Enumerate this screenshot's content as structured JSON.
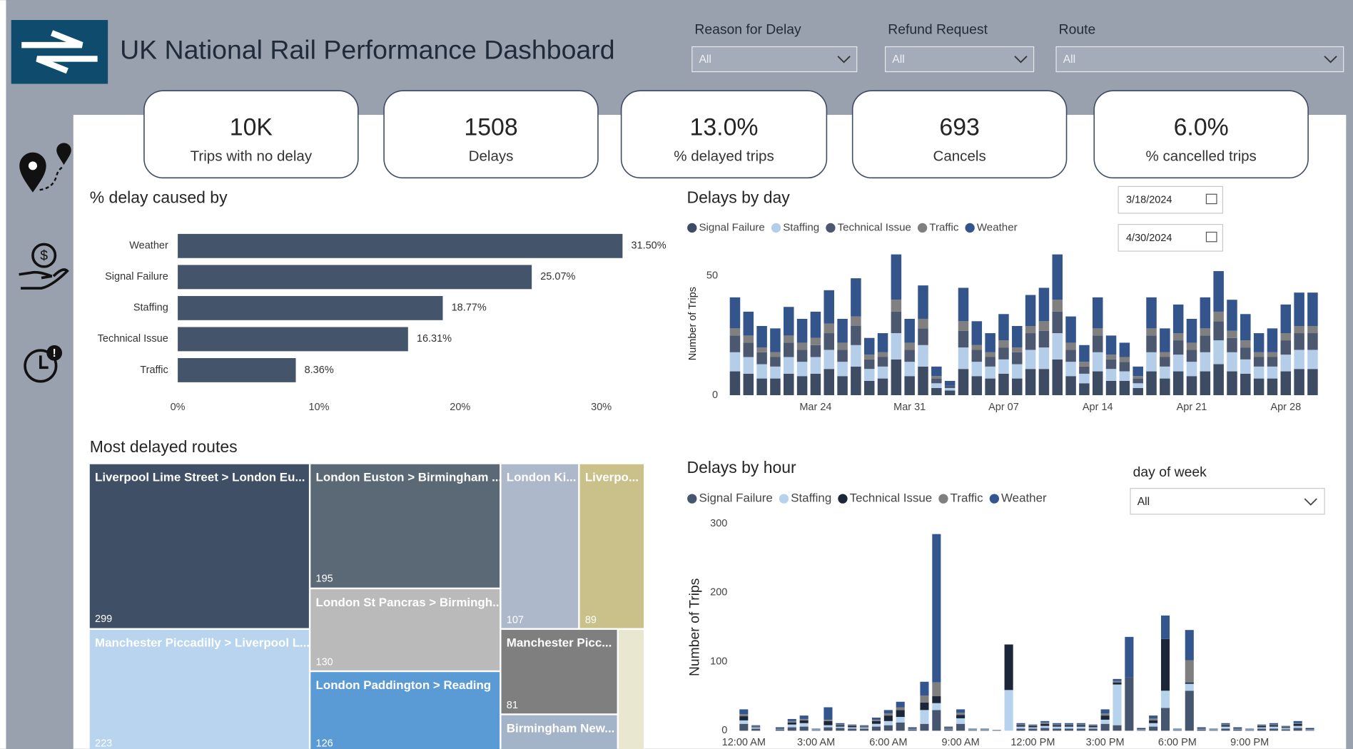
{
  "header": {
    "title": "UK National Rail Performance Dashboard"
  },
  "filters": [
    {
      "label": "Reason for Delay",
      "value": "All"
    },
    {
      "label": "Refund Request",
      "value": "All"
    },
    {
      "label": "Route",
      "value": "All"
    }
  ],
  "kpis": [
    {
      "value": "10K",
      "label": "Trips with no delay"
    },
    {
      "value": 1508,
      "label": "Delays"
    },
    {
      "value": "13.0%",
      "label": "% delayed trips"
    },
    {
      "value": 693,
      "label": "Cancels"
    },
    {
      "value": "6.0%",
      "label": "% cancelled trips"
    }
  ],
  "date_range": {
    "start": "3/18/2024",
    "end": "4/30/2024"
  },
  "day_filter": {
    "label": "day of week",
    "value": "All"
  },
  "chart_data": [
    {
      "type": "hbar",
      "title": "% delay caused by",
      "categories": [
        "Weather",
        "Signal Failure",
        "Staffing",
        "Technical Issue",
        "Traffic"
      ],
      "values": [
        31.5,
        25.07,
        18.77,
        16.31,
        8.36
      ],
      "value_labels": [
        "31.50%",
        "25.07%",
        "18.77%",
        "16.31%",
        "8.36%"
      ],
      "color": "#44546a",
      "xlim": [
        0,
        33
      ],
      "xticks": [
        {
          "value": 0,
          "label": "0%"
        },
        {
          "value": 10,
          "label": "10%"
        },
        {
          "value": 20,
          "label": "20%"
        },
        {
          "value": 30,
          "label": "30%"
        }
      ]
    },
    {
      "type": "stacked_bar",
      "title": "Delays by day",
      "y_label": "Number of Trips",
      "categories": [
        null,
        null,
        null,
        null,
        null,
        null,
        "Mar 24",
        null,
        null,
        null,
        null,
        null,
        null,
        "Mar 31",
        null,
        null,
        null,
        null,
        null,
        null,
        "Apr 07",
        null,
        null,
        null,
        null,
        null,
        null,
        "Apr 14",
        null,
        null,
        null,
        null,
        null,
        null,
        "Apr 21",
        null,
        null,
        null,
        null,
        null,
        null,
        "Apr 28",
        null,
        null
      ],
      "ylim": [
        0,
        60
      ],
      "yticks": [
        0,
        50
      ],
      "series": [
        {
          "name": "Signal Failure",
          "color": "#3e4c63",
          "values": [
            10,
            9,
            7,
            7,
            9,
            8,
            9,
            11,
            8,
            12,
            6,
            7,
            15,
            8,
            12,
            3,
            2,
            11,
            8,
            7,
            9,
            7,
            11,
            11,
            15,
            8,
            5,
            10,
            6,
            6,
            3,
            10,
            7,
            10,
            8,
            10,
            13,
            10,
            9,
            7,
            7,
            10,
            11,
            11
          ]
        },
        {
          "name": "Staffing",
          "color": "#b4cde8",
          "values": [
            8,
            7,
            6,
            5,
            7,
            6,
            7,
            8,
            6,
            9,
            5,
            5,
            11,
            6,
            9,
            2,
            1,
            9,
            6,
            5,
            6,
            6,
            8,
            9,
            11,
            6,
            4,
            8,
            5,
            4,
            2,
            8,
            5,
            7,
            6,
            8,
            10,
            8,
            6,
            5,
            5,
            7,
            8,
            8
          ]
        },
        {
          "name": "Technical Issue",
          "color": "#4b5870",
          "values": [
            7,
            6,
            5,
            4,
            6,
            5,
            5,
            7,
            5,
            8,
            4,
            4,
            9,
            5,
            7,
            2,
            1,
            7,
            5,
            4,
            5,
            5,
            7,
            7,
            9,
            5,
            3,
            7,
            4,
            4,
            2,
            7,
            4,
            6,
            5,
            7,
            8,
            6,
            5,
            4,
            4,
            6,
            7,
            7
          ]
        },
        {
          "name": "Traffic",
          "color": "#808080",
          "values": [
            3,
            3,
            2,
            2,
            3,
            3,
            3,
            4,
            3,
            4,
            2,
            2,
            5,
            3,
            4,
            1,
            0,
            4,
            2,
            2,
            3,
            2,
            3,
            4,
            5,
            3,
            2,
            3,
            2,
            2,
            1,
            3,
            2,
            3,
            3,
            3,
            4,
            3,
            3,
            2,
            2,
            3,
            3,
            3
          ]
        },
        {
          "name": "Weather",
          "color": "#33558c",
          "values": [
            13,
            10,
            9,
            10,
            12,
            10,
            11,
            14,
            10,
            16,
            7,
            8,
            19,
            10,
            14,
            4,
            2,
            14,
            10,
            8,
            11,
            9,
            13,
            14,
            19,
            11,
            7,
            13,
            8,
            6,
            4,
            13,
            10,
            12,
            10,
            13,
            17,
            13,
            11,
            8,
            10,
            12,
            14,
            14
          ]
        }
      ]
    },
    {
      "type": "stacked_bar",
      "title": "Delays by hour",
      "y_label": "Number of Trips",
      "categories": [
        "12:00 AM",
        null,
        null,
        null,
        null,
        null,
        "3:00 AM",
        null,
        null,
        null,
        null,
        null,
        "6:00 AM",
        null,
        null,
        null,
        null,
        null,
        "9:00 AM",
        null,
        null,
        null,
        null,
        null,
        "12:00 PM",
        null,
        null,
        null,
        null,
        null,
        "3:00 PM",
        null,
        null,
        null,
        null,
        null,
        "6:00 PM",
        null,
        null,
        null,
        null,
        null,
        "9:00 PM",
        null,
        null,
        null,
        null,
        null
      ],
      "ylim": [
        0,
        300
      ],
      "yticks": [
        0,
        100,
        200,
        300
      ],
      "series": [
        {
          "name": "Signal Failure",
          "color": "#46566f",
          "values": [
            10,
            3,
            0,
            2,
            5,
            6,
            1,
            5,
            4,
            3,
            3,
            6,
            8,
            12,
            2,
            10,
            30,
            2,
            10,
            1,
            1,
            0,
            0,
            3,
            3,
            4,
            3,
            3,
            3,
            3,
            10,
            8,
            77,
            1,
            6,
            33,
            1,
            58,
            2,
            1,
            3,
            2,
            1,
            3,
            3,
            2,
            4,
            1
          ]
        },
        {
          "name": "Staffing",
          "color": "#b7d2ec",
          "values": [
            5,
            2,
            0,
            1,
            4,
            5,
            1,
            3,
            2,
            2,
            2,
            4,
            6,
            8,
            1,
            20,
            10,
            1,
            8,
            1,
            1,
            0,
            59,
            3,
            2,
            3,
            3,
            3,
            3,
            2,
            6,
            59,
            0,
            1,
            5,
            25,
            1,
            10,
            1,
            1,
            3,
            1,
            1,
            2,
            3,
            2,
            3,
            1
          ]
        },
        {
          "name": "Technical Issue",
          "color": "#1b2638",
          "values": [
            6,
            1,
            0,
            1,
            3,
            4,
            0,
            6,
            2,
            2,
            1,
            4,
            8,
            10,
            1,
            11,
            10,
            1,
            5,
            0,
            0,
            0,
            66,
            2,
            2,
            3,
            2,
            2,
            2,
            2,
            6,
            3,
            0,
            1,
            4,
            75,
            0,
            2,
            1,
            0,
            2,
            1,
            0,
            2,
            2,
            1,
            3,
            1
          ]
        },
        {
          "name": "Traffic",
          "color": "#7f7f7f",
          "values": [
            3,
            1,
            0,
            0,
            2,
            2,
            0,
            2,
            1,
            1,
            1,
            2,
            3,
            4,
            0,
            10,
            20,
            1,
            3,
            0,
            0,
            0,
            0,
            1,
            1,
            2,
            1,
            1,
            1,
            1,
            3,
            2,
            0,
            0,
            3,
            0,
            0,
            32,
            0,
            0,
            1,
            0,
            0,
            1,
            1,
            1,
            1,
            0
          ]
        },
        {
          "name": "Weather",
          "color": "#34568e",
          "values": [
            7,
            1,
            0,
            1,
            3,
            5,
            1,
            18,
            2,
            1,
            1,
            3,
            5,
            8,
            1,
            20,
            215,
            1,
            5,
            1,
            1,
            1,
            0,
            2,
            1,
            2,
            2,
            2,
            2,
            1,
            6,
            3,
            59,
            1,
            4,
            34,
            1,
            44,
            1,
            1,
            2,
            1,
            1,
            1,
            2,
            1,
            3,
            1
          ]
        }
      ]
    },
    {
      "type": "treemap",
      "title": "Most delayed routes",
      "nodes": [
        {
          "name": "Liverpool Lime Street > London Eu...",
          "value": 299,
          "color": "#3f4f66"
        },
        {
          "name": "Manchester Piccadilly > Liverpool L...",
          "value": 223,
          "color": "#b8d4ee"
        },
        {
          "name": "London Euston > Birmingham ...",
          "value": 195,
          "color": "#5b6976"
        },
        {
          "name": "London St Pancras > Birmingh...",
          "value": 130,
          "color": "#bababa"
        },
        {
          "name": "London Paddington > Reading",
          "value": 126,
          "color": "#5b9bd5"
        },
        {
          "name": "London Ki...",
          "value": 107,
          "color": "#adb9ca"
        },
        {
          "name": "Liverpo...",
          "value": 89,
          "color": "#c9c08a"
        },
        {
          "name": "Manchester Picc...",
          "value": 81,
          "color": "#7f7f7f"
        },
        {
          "name": "Birmingham New...",
          "color": "#a3b3c8"
        }
      ]
    }
  ]
}
